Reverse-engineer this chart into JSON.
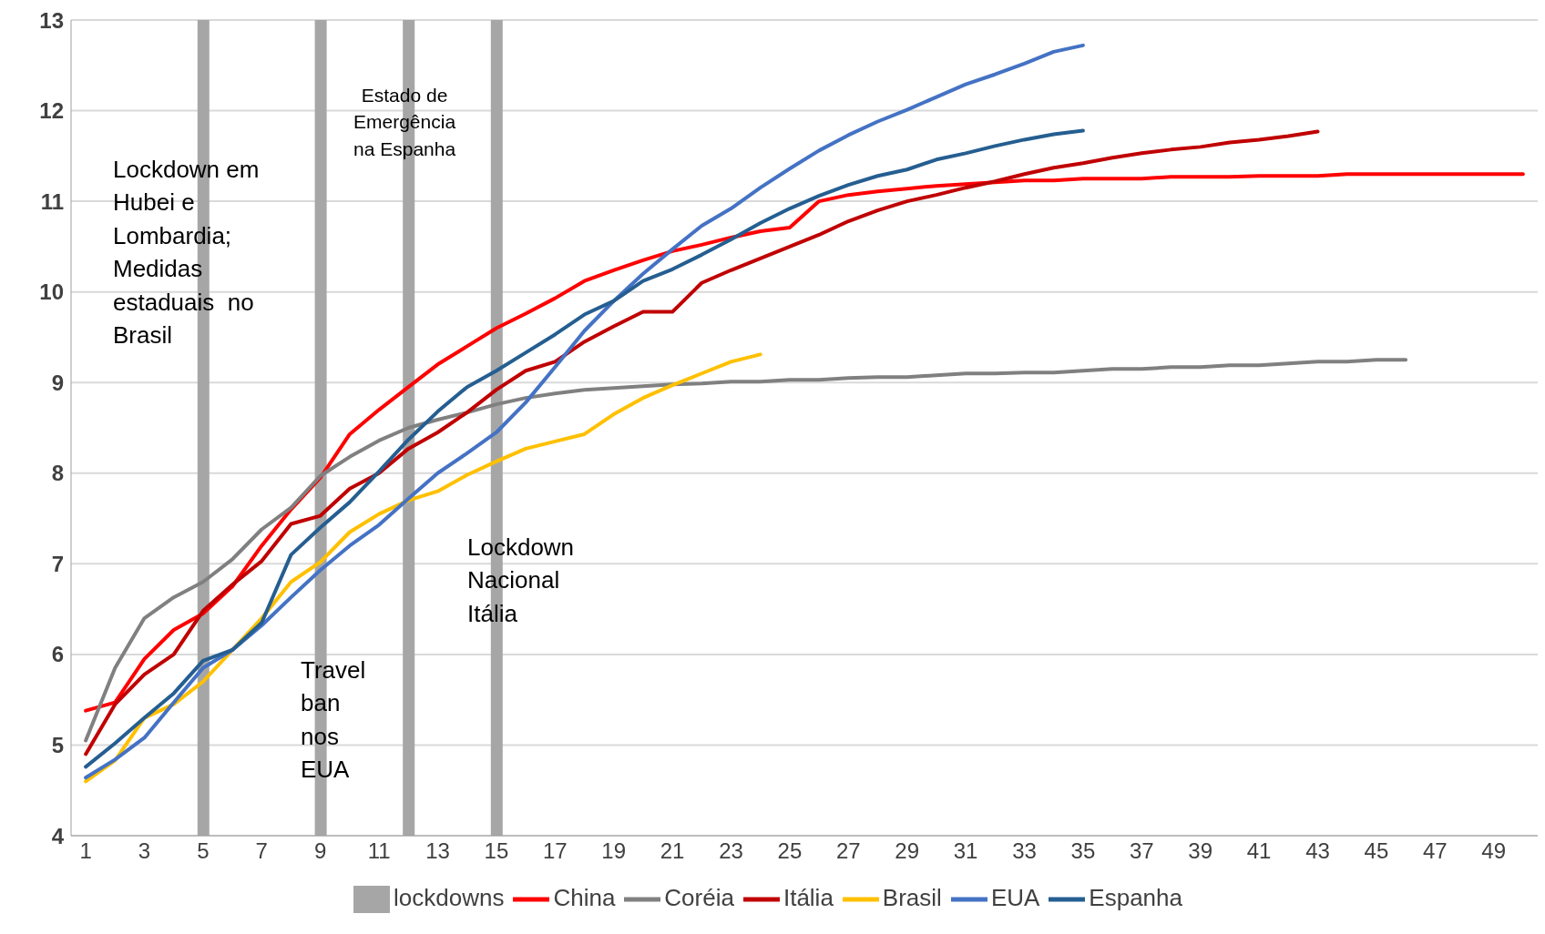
{
  "chart_data": {
    "type": "line",
    "x": [
      1,
      2,
      3,
      4,
      5,
      6,
      7,
      8,
      9,
      10,
      11,
      12,
      13,
      14,
      15,
      16,
      17,
      18,
      19,
      20,
      21,
      22,
      23,
      24,
      25,
      26,
      27,
      28,
      29,
      30,
      31,
      32,
      33,
      34,
      35,
      36,
      37,
      38,
      39,
      40,
      41,
      42,
      43,
      44,
      45,
      46,
      47,
      48,
      49,
      50
    ],
    "xlim": [
      0.5,
      50.5
    ],
    "xticks": [
      1,
      3,
      5,
      7,
      9,
      11,
      13,
      15,
      17,
      19,
      21,
      23,
      25,
      27,
      29,
      31,
      33,
      35,
      37,
      39,
      41,
      43,
      45,
      47,
      49
    ],
    "series": [
      {
        "name": "lockdowns",
        "type": "bar",
        "color": "#a6a6a6",
        "values": [
          null,
          null,
          null,
          null,
          13,
          null,
          null,
          null,
          13,
          null,
          null,
          13,
          null,
          null,
          13,
          null,
          null,
          null,
          null,
          null,
          null,
          null,
          null,
          null,
          null,
          null,
          null,
          null,
          null,
          null,
          null,
          null,
          null,
          null,
          null,
          null,
          null,
          null,
          null,
          null,
          null,
          null,
          null,
          null,
          null,
          null,
          null,
          null,
          null,
          null
        ]
      },
      {
        "name": "China",
        "color": "#ff0000",
        "values": [
          5.38,
          5.47,
          5.95,
          6.27,
          6.45,
          6.75,
          7.2,
          7.6,
          7.95,
          8.43,
          8.7,
          8.95,
          9.2,
          9.4,
          9.6,
          9.76,
          9.93,
          10.12,
          10.24,
          10.35,
          10.45,
          10.52,
          10.6,
          10.67,
          10.71,
          11.0,
          11.07,
          11.11,
          11.14,
          11.17,
          11.19,
          11.21,
          11.23,
          11.23,
          11.25,
          11.25,
          11.25,
          11.27,
          11.27,
          11.27,
          11.28,
          11.28,
          11.28,
          11.3,
          11.3,
          11.3,
          11.3,
          11.3,
          11.3,
          11.3
        ]
      },
      {
        "name": "Coréia",
        "color": "#808080",
        "values": [
          5.05,
          5.85,
          6.4,
          6.63,
          6.8,
          7.05,
          7.38,
          7.62,
          7.97,
          8.18,
          8.36,
          8.5,
          8.59,
          8.67,
          8.76,
          8.83,
          8.88,
          8.92,
          8.94,
          8.96,
          8.98,
          8.99,
          9.01,
          9.01,
          9.03,
          9.03,
          9.05,
          9.06,
          9.06,
          9.08,
          9.1,
          9.1,
          9.11,
          9.11,
          9.13,
          9.15,
          9.15,
          9.17,
          9.17,
          9.19,
          9.19,
          9.21,
          9.23,
          9.23,
          9.25,
          9.25,
          null,
          null,
          null,
          null
        ]
      },
      {
        "name": "Itália",
        "color": "#c00000",
        "values": [
          4.9,
          5.45,
          5.78,
          6.0,
          6.48,
          6.77,
          7.03,
          7.44,
          7.53,
          7.83,
          8.0,
          8.27,
          8.45,
          8.67,
          8.92,
          9.13,
          9.23,
          9.45,
          9.62,
          9.78,
          9.78,
          10.1,
          10.24,
          10.37,
          10.5,
          10.63,
          10.78,
          10.9,
          11.0,
          11.07,
          11.15,
          11.22,
          11.3,
          11.37,
          11.42,
          11.48,
          11.53,
          11.57,
          11.6,
          11.65,
          11.68,
          11.72,
          11.77,
          null,
          null,
          null,
          null,
          null,
          null,
          null
        ]
      },
      {
        "name": "Brasil",
        "color": "#ffc000",
        "values": [
          4.6,
          4.83,
          5.3,
          5.45,
          5.7,
          6.05,
          6.4,
          6.8,
          7.02,
          7.35,
          7.55,
          7.7,
          7.8,
          7.98,
          8.13,
          8.27,
          8.35,
          8.43,
          8.65,
          8.83,
          8.97,
          9.1,
          9.23,
          9.31,
          null,
          null,
          null,
          null,
          null,
          null,
          null,
          null,
          null,
          null,
          null,
          null,
          null,
          null,
          null,
          null,
          null,
          null,
          null,
          null,
          null,
          null,
          null,
          null,
          null,
          null
        ]
      },
      {
        "name": "EUA",
        "color": "#4472c4",
        "values": [
          4.64,
          4.84,
          5.08,
          5.47,
          5.85,
          6.05,
          6.32,
          6.63,
          6.93,
          7.2,
          7.43,
          7.72,
          8.0,
          8.22,
          8.45,
          8.78,
          9.17,
          9.57,
          9.9,
          10.2,
          10.47,
          10.73,
          10.92,
          11.15,
          11.36,
          11.56,
          11.73,
          11.88,
          12.01,
          12.15,
          12.29,
          12.4,
          12.52,
          12.65,
          12.72,
          null,
          null,
          null,
          null,
          null,
          null,
          null,
          null,
          null,
          null,
          null,
          null,
          null,
          null,
          null
        ]
      },
      {
        "name": "Espanha",
        "color": "#255e91",
        "values": [
          4.76,
          5.02,
          5.3,
          5.57,
          5.93,
          6.05,
          6.35,
          7.1,
          7.4,
          7.68,
          8.02,
          8.37,
          8.68,
          8.95,
          9.13,
          9.33,
          9.53,
          9.75,
          9.9,
          10.12,
          10.25,
          10.41,
          10.58,
          10.76,
          10.92,
          11.06,
          11.18,
          11.28,
          11.35,
          11.46,
          11.53,
          11.61,
          11.68,
          11.74,
          11.78,
          null,
          null,
          null,
          null,
          null,
          null,
          null,
          null,
          null,
          null,
          null,
          null,
          null,
          null,
          null
        ]
      }
    ],
    "ylim": [
      4,
      13
    ],
    "yticks": [
      4,
      5,
      6,
      7,
      8,
      9,
      10,
      11,
      12,
      13
    ],
    "grid": "y",
    "legend": "bottom",
    "marker": "none",
    "line_style": "solid",
    "annotations": [
      "Lockdown em\nHubei e\nLombardia;\nMedidas\nestaduais  no\nBrasil",
      "Estado de\nEmergência\nna Espanha",
      "Travel\nban\nnos\nEUA",
      "Lockdown\nNacional\nItália"
    ]
  }
}
